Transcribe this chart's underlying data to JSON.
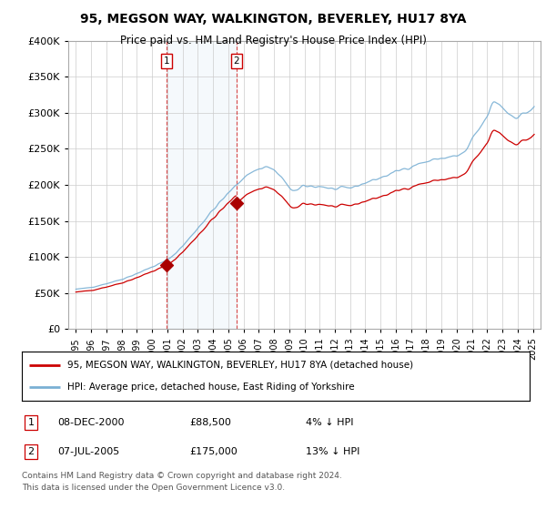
{
  "title": "95, MEGSON WAY, WALKINGTON, BEVERLEY, HU17 8YA",
  "subtitle": "Price paid vs. HM Land Registry's House Price Index (HPI)",
  "background_color": "#ffffff",
  "plot_bg_color": "#ffffff",
  "grid_color": "#cccccc",
  "sale1_price": 88500,
  "sale1_year": 2000.958,
  "sale2_price": 175000,
  "sale2_year": 2005.542,
  "hpi_line_color": "#7ab0d4",
  "price_line_color": "#cc0000",
  "sale_marker_color": "#aa0000",
  "shade_color": "#ddeeff",
  "vline_color": "#cc0000",
  "yticks": [
    0,
    50000,
    100000,
    150000,
    200000,
    250000,
    300000,
    350000,
    400000
  ],
  "ylabels": [
    "£0",
    "£50K",
    "£100K",
    "£150K",
    "£200K",
    "£250K",
    "£300K",
    "£350K",
    "£400K"
  ],
  "legend_line1": "95, MEGSON WAY, WALKINGTON, BEVERLEY, HU17 8YA (detached house)",
  "legend_line2": "HPI: Average price, detached house, East Riding of Yorkshire",
  "footnote1": "Contains HM Land Registry data © Crown copyright and database right 2024.",
  "footnote2": "This data is licensed under the Open Government Licence v3.0.",
  "table_row1": [
    "1",
    "08-DEC-2000",
    "£88,500",
    "4% ↓ HPI"
  ],
  "table_row2": [
    "2",
    "07-JUL-2005",
    "£175,000",
    "13% ↓ HPI"
  ],
  "xmin": 1994.5,
  "xmax": 2025.5,
  "ymin": 0,
  "ymax": 400000
}
